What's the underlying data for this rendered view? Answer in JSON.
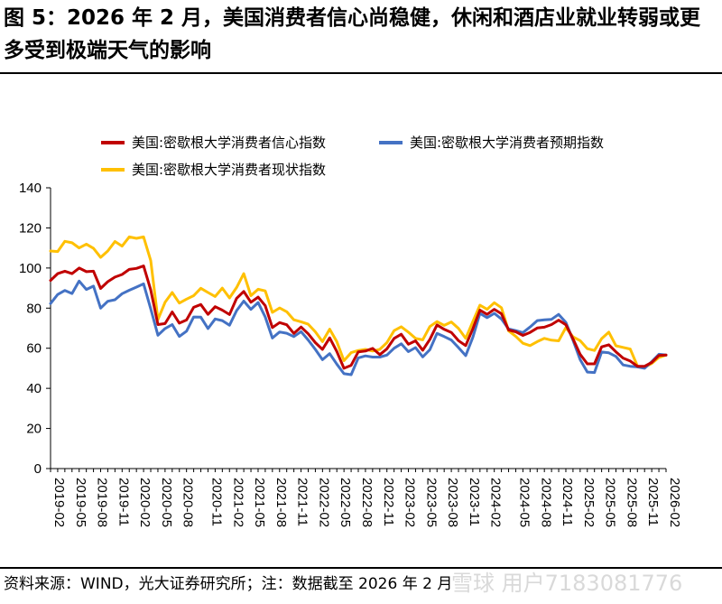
{
  "title": "图 5：2026 年 2 月，美国消费者信心尚稳健，休闲和酒店业就业转弱或更多受到极端天气的影响",
  "source": "资料来源：WIND，光大证券研究所；注：数据截至 2026 年 2 月",
  "watermark": "雪球 用户7183081776",
  "colors": {
    "sentiment": "#C00000",
    "expectations": "#4472C4",
    "current": "#FFC000"
  },
  "chart_data": {
    "type": "line",
    "ylim": [
      0,
      140
    ],
    "yticks": [
      0,
      20,
      40,
      60,
      80,
      100,
      120,
      140
    ],
    "xtick_labels": [
      "2019-02",
      "2019-05",
      "2019-08",
      "2019-11",
      "2020-02",
      "2020-05",
      "2020-08",
      "2020-11",
      "2021-02",
      "2021-05",
      "2021-08",
      "2021-11",
      "2022-02",
      "2022-05",
      "2022-08",
      "2022-11",
      "2023-02",
      "2023-05",
      "2023-08",
      "2023-11",
      "2024-02",
      "2024-05",
      "2024-08",
      "2024-11",
      "2025-02",
      "2025-05",
      "2025-08",
      "2025-11",
      "2026-02"
    ],
    "legend": {
      "position": "top"
    },
    "series": [
      {
        "key": "sentiment",
        "name": "美国:密歇根大学消费者信心指数",
        "color": "#C00000",
        "values": [
          93.8,
          97.2,
          98.4,
          97.2,
          100.0,
          98.2,
          98.4,
          89.8,
          93.2,
          95.5,
          96.8,
          99.3,
          99.8,
          101.0,
          89.1,
          71.8,
          72.3,
          78.1,
          72.5,
          74.1,
          80.4,
          81.8,
          76.9,
          80.7,
          79.0,
          76.8,
          84.9,
          88.3,
          82.9,
          85.5,
          81.2,
          70.3,
          72.8,
          71.7,
          67.4,
          70.6,
          67.2,
          62.8,
          59.4,
          65.2,
          58.4,
          50.0,
          51.5,
          58.2,
          58.6,
          59.9,
          56.8,
          59.7,
          64.9,
          67.0,
          62.0,
          63.7,
          59.0,
          64.4,
          71.6,
          69.4,
          67.9,
          63.8,
          61.3,
          69.7,
          79.0,
          76.9,
          79.4,
          77.2,
          69.1,
          68.2,
          66.4,
          67.9,
          70.1,
          70.5,
          71.8,
          74.0,
          71.7,
          64.7,
          57.0,
          52.2,
          52.2,
          60.7,
          61.7,
          58.2,
          55.1,
          53.6,
          51.0,
          51.0,
          52.9,
          56.4,
          56.6
        ]
      },
      {
        "key": "expectations",
        "name": "美国:密歇根大学消费者预期指数",
        "color": "#4472C4",
        "values": [
          82.3,
          86.8,
          88.8,
          87.3,
          93.5,
          89.3,
          91.0,
          80.0,
          83.4,
          84.2,
          87.2,
          88.9,
          90.5,
          92.1,
          79.7,
          66.5,
          69.8,
          71.8,
          65.9,
          68.5,
          75.6,
          75.5,
          69.8,
          74.6,
          73.8,
          71.5,
          78.8,
          83.5,
          79.4,
          82.8,
          75.6,
          65.1,
          68.1,
          67.5,
          65.8,
          68.3,
          64.1,
          59.4,
          54.3,
          57.3,
          52.1,
          47.3,
          46.8,
          55.2,
          56.2,
          55.6,
          55.6,
          56.6,
          60.0,
          62.2,
          58.3,
          60.3,
          55.7,
          59.3,
          67.4,
          65.8,
          64.1,
          60.3,
          56.3,
          65.4,
          77.4,
          75.2,
          77.4,
          74.6,
          69.6,
          68.8,
          67.8,
          70.6,
          73.8,
          74.2,
          74.4,
          76.9,
          72.9,
          64.0,
          54.4,
          48.1,
          47.9,
          58.1,
          57.7,
          55.9,
          51.7,
          51.0,
          50.7,
          50.0,
          53.3,
          57.0,
          56.6
        ]
      },
      {
        "key": "current",
        "name": "美国:密歇根大学消费者现状指数",
        "color": "#FFC000",
        "values": [
          108.5,
          108.2,
          113.3,
          112.6,
          110.0,
          111.9,
          109.8,
          105.3,
          108.5,
          113.2,
          110.9,
          115.5,
          114.8,
          115.5,
          103.7,
          74.3,
          82.9,
          87.8,
          82.5,
          84.5,
          86.2,
          89.9,
          87.8,
          85.8,
          90.0,
          85.1,
          90.3,
          97.2,
          86.2,
          89.4,
          88.6,
          77.9,
          80.1,
          78.2,
          74.2,
          73.2,
          72.0,
          68.2,
          63.3,
          69.5,
          63.3,
          53.8,
          57.8,
          58.9,
          59.4,
          58.6,
          59.4,
          62.8,
          68.8,
          70.7,
          68.0,
          64.9,
          64.2,
          70.8,
          73.3,
          71.4,
          73.1,
          69.9,
          64.9,
          73.3,
          81.5,
          79.4,
          82.7,
          80.2,
          68.7,
          65.9,
          62.5,
          61.3,
          63.3,
          64.9,
          64.0,
          63.7,
          70.3,
          65.7,
          63.8,
          59.8,
          58.9,
          64.8,
          68.0,
          61.2,
          60.4,
          59.6,
          51.1,
          50.4,
          52.4,
          55.4,
          56.6
        ]
      }
    ]
  }
}
